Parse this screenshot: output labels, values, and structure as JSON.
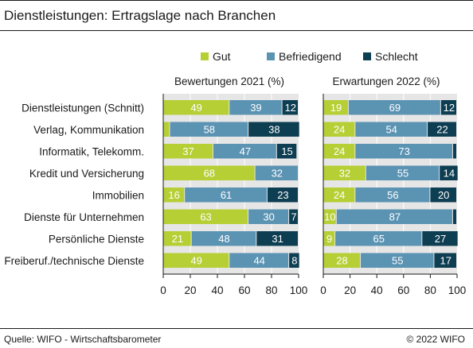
{
  "header": {
    "title": "Dienstleistungen: Ertragslage nach Branchen"
  },
  "footer": {
    "source": "Quelle: WIFO - Wirtschaftsbarometer",
    "copyright": "© 2022 WIFO"
  },
  "colors": {
    "gut": "#b5cf35",
    "befriedigend": "#5b93b3",
    "schlecht": "#0e3e52"
  },
  "chart_data": [
    {
      "type": "bar",
      "orientation": "horizontal",
      "stacked": true,
      "title": "Bewertungen 2021 (%)",
      "categories": [
        "Dienstleistungen (Schnitt)",
        "Verlag, Kommunikation",
        "Informatik, Telekomm.",
        "Kredit und Versicherung",
        "Immobilien",
        "Dienste für Unternehmen",
        "Persönliche Dienste",
        "Freiberuf./technische Dienste"
      ],
      "series": [
        {
          "name": "Gut",
          "values": [
            49,
            5,
            37,
            68,
            16,
            63,
            21,
            49
          ]
        },
        {
          "name": "Befriedigend",
          "values": [
            39,
            58,
            47,
            32,
            61,
            30,
            48,
            44
          ]
        },
        {
          "name": "Schlecht",
          "values": [
            12,
            38,
            15,
            0,
            23,
            7,
            31,
            8
          ]
        }
      ],
      "labels": [
        [
          "49",
          "39",
          "12"
        ],
        [
          "",
          "58",
          "38"
        ],
        [
          "37",
          "47",
          "15"
        ],
        [
          "68",
          "32",
          ""
        ],
        [
          "16",
          "61",
          "23"
        ],
        [
          "63",
          "30",
          "7"
        ],
        [
          "21",
          "48",
          "31"
        ],
        [
          "49",
          "44",
          "8"
        ]
      ],
      "xlim": [
        0,
        100
      ],
      "xticks": [
        "0",
        "20",
        "40",
        "60",
        "80",
        "100"
      ],
      "legend": "top"
    },
    {
      "type": "bar",
      "orientation": "horizontal",
      "stacked": true,
      "title": "Erwartungen 2022 (%)",
      "categories": [
        "Dienstleistungen (Schnitt)",
        "Verlag, Kommunikation",
        "Informatik, Telekomm.",
        "Kredit und Versicherung",
        "Immobilien",
        "Dienste für Unternehmen",
        "Persönliche Dienste",
        "Freiberuf./technische Dienste"
      ],
      "series": [
        {
          "name": "Gut",
          "values": [
            19,
            24,
            24,
            32,
            24,
            10,
            9,
            28
          ]
        },
        {
          "name": "Befriedigend",
          "values": [
            69,
            54,
            73,
            55,
            56,
            87,
            65,
            55
          ]
        },
        {
          "name": "Schlecht",
          "values": [
            12,
            22,
            3,
            14,
            20,
            3,
            27,
            17
          ]
        }
      ],
      "labels": [
        [
          "19",
          "69",
          "12"
        ],
        [
          "24",
          "54",
          "22"
        ],
        [
          "24",
          "73",
          ""
        ],
        [
          "32",
          "55",
          "14"
        ],
        [
          "24",
          "56",
          "20"
        ],
        [
          "10",
          "87",
          ""
        ],
        [
          "9",
          "65",
          "27"
        ],
        [
          "28",
          "55",
          "17"
        ]
      ],
      "xlim": [
        0,
        100
      ],
      "xticks": [
        "0",
        "20",
        "40",
        "60",
        "80",
        "100"
      ],
      "legend": "top"
    }
  ]
}
